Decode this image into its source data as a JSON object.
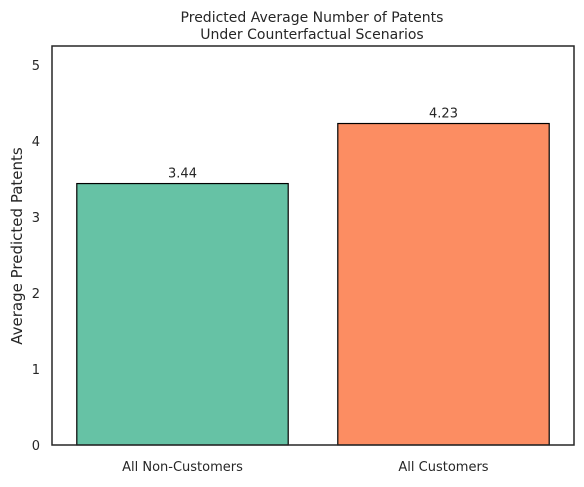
{
  "chart_data": {
    "type": "bar",
    "title_lines": [
      "Predicted Average Number of Patents",
      "Under Counterfactual Scenarios"
    ],
    "xlabel": "",
    "ylabel": "Average Predicted Patents",
    "categories": [
      "All Non-Customers",
      "All Customers"
    ],
    "values": [
      3.44,
      4.23
    ],
    "data_labels": [
      "3.44",
      "4.23"
    ],
    "colors": [
      "#66c2a5",
      "#fc8d62"
    ],
    "edge_color": "#000000",
    "ylim": [
      0,
      5.25
    ],
    "yticks": [
      0,
      1,
      2,
      3,
      4,
      5
    ],
    "grid": false,
    "legend": "none"
  }
}
